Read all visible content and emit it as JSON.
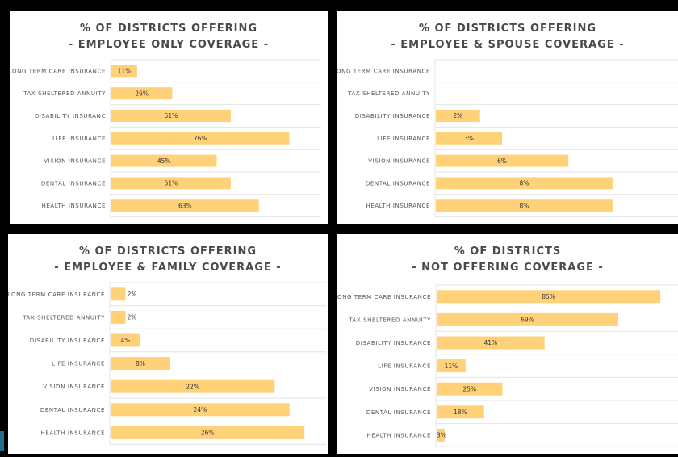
{
  "colors": {
    "bar": "#ffd27a",
    "gridline": "#e4e4e4",
    "background": "#000000",
    "panel": "#ffffff",
    "title_text": "#4a4a4a"
  },
  "chart_data": [
    {
      "type": "bar",
      "orientation": "horizontal",
      "title": "% OF DISTRICTS OFFERING",
      "subtitle": "- EMPLOYEE ONLY COVERAGE -",
      "categories": [
        "LONG TERM CARE INSURANCE",
        "TAX SHELTERED ANNUITY",
        "DISABILITY INSURANC",
        "LIFE INSURANCE",
        "VISION INSURANCE",
        "DENTAL INSURANCE",
        "HEALTH INSURANCE"
      ],
      "values": [
        11,
        26,
        51,
        76,
        45,
        51,
        63
      ],
      "value_labels": [
        "11%",
        "26%",
        "51%",
        "76%",
        "45%",
        "51%",
        "63%"
      ],
      "xlim": [
        0,
        90
      ],
      "grid": true,
      "legend": false
    },
    {
      "type": "bar",
      "orientation": "horizontal",
      "title": "% OF DISTRICTS OFFERING",
      "subtitle": "- EMPLOYEE & SPOUSE COVERAGE -",
      "categories": [
        "LONG TERM CARE INSURANCE",
        "TAX SHELTERED ANNUITY",
        "DISABILITY INSURANCE",
        "LIFE INSURANCE",
        "VISION INSURANCE",
        "DENTAL INSURANCE",
        "HEALTH INSURANCE"
      ],
      "values": [
        0,
        0,
        2,
        3,
        6,
        8,
        8
      ],
      "value_labels": [
        "",
        "",
        "2%",
        "3%",
        "6%",
        "8%",
        "8%"
      ],
      "xlim": [
        0,
        11
      ],
      "grid": true,
      "legend": false
    },
    {
      "type": "bar",
      "orientation": "horizontal",
      "title": "% OF DISTRICTS OFFERING",
      "subtitle": "- EMPLOYEE & FAMILY COVERAGE -",
      "categories": [
        "LONG TERM CARE INSURANCE",
        "TAX SHELTERED ANNUITY",
        "DISABILITY INSURANCE",
        "LIFE INSURANCE",
        "VISION INSURANCE",
        "DENTAL INSURANCE",
        "HEALTH INSURANCE"
      ],
      "values": [
        2,
        2,
        4,
        8,
        22,
        24,
        26
      ],
      "value_labels": [
        "2%",
        "2%",
        "4%",
        "8%",
        "22%",
        "24%",
        "26%"
      ],
      "xlim": [
        0,
        29
      ],
      "grid": true,
      "legend": false
    },
    {
      "type": "bar",
      "orientation": "horizontal",
      "title": "% OF DISTRICTS",
      "subtitle": "- NOT OFFERING COVERAGE -",
      "categories": [
        "LONG TERM CARE INSURANCE",
        "TAX SHELTERED ANNUITY",
        "DISABILITY INSURANCE",
        "LIFE INSURANCE",
        "VISION INSURANCE",
        "DENTAL INSURANCE",
        "HEALTH INSURANCE"
      ],
      "values": [
        85,
        69,
        41,
        11,
        25,
        18,
        3
      ],
      "value_labels": [
        "85%",
        "69%",
        "41%",
        "11%",
        "25%",
        "18%",
        "3%"
      ],
      "xlim": [
        0,
        92
      ],
      "grid": true,
      "legend": false
    }
  ]
}
